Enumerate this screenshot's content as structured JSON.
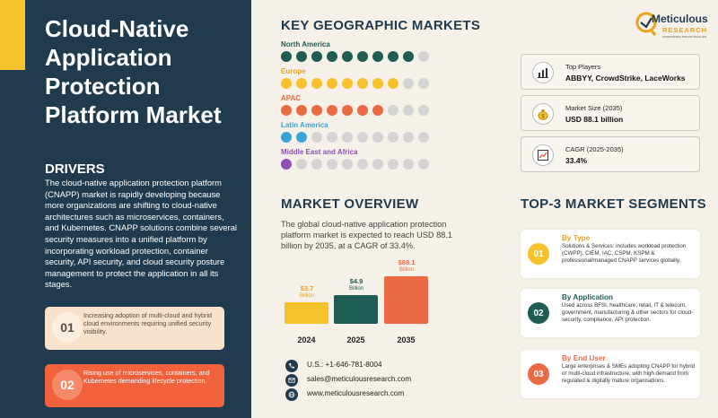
{
  "title": "Cloud-Native Application Protection Platform Market",
  "drivers": {
    "heading": "DRIVERS",
    "text": "The cloud-native application protection platform (CNAPP) market is rapidly developing because more organizations are shifting to cloud-native architectures such as microservices, containers, and Kubernetes. CNAPP solutions combine several security measures into a unified platform by incorporating workload protection, container security, API security, and cloud security posture management to protect the application in all its stages.",
    "cards": [
      {
        "num": "01",
        "text": "Increasing adoption of multi-cloud and hybrid cloud environments requiring unified security visibility."
      },
      {
        "num": "02",
        "text": "Rising use of microservices, containers, and Kubernetes demanding lifecycle protection."
      }
    ]
  },
  "geo": {
    "heading": "KEY GEOGRAPHIC MARKETS",
    "regions": [
      {
        "name": "North America",
        "filled": 9,
        "total": 10,
        "color": "#1f5c54"
      },
      {
        "name": "Europe",
        "filled": 8,
        "total": 10,
        "color": "#f5c22b"
      },
      {
        "name": "APAC",
        "filled": 7,
        "total": 10,
        "color": "#ea6a43"
      },
      {
        "name": "Latin America",
        "filled": 2,
        "total": 10,
        "color": "#3aa3d5"
      },
      {
        "name": "Middle East and Africa",
        "filled": 1,
        "total": 10,
        "color": "#8e4fb8"
      }
    ]
  },
  "logo": {
    "line1": "Meticulous",
    "line2": "RESEARCH",
    "tagline": "TRANSFORMING INSIGHTS SINCE 2010"
  },
  "stats": [
    {
      "label": "Top Players",
      "value": "ABBYY, CrowdStrike, LaceWorks",
      "icon": "bar-chart-icon"
    },
    {
      "label": "Market Size (2035)",
      "value": "USD 88.1 billion",
      "icon": "money-bag-icon"
    },
    {
      "label": "CAGR (2025-2035)",
      "value": "33.4%",
      "icon": "trend-up-icon"
    }
  ],
  "overview": {
    "heading": "MARKET OVERVIEW",
    "text": "The global cloud-native application protection platform market is expected to reach USD 88.1 billion by 2035, at a CAGR of 33.4%."
  },
  "chart_data": {
    "type": "bar",
    "categories": [
      "2024",
      "2025",
      "2035"
    ],
    "values": [
      3.7,
      4.9,
      88.1
    ],
    "labels": [
      "$3.7",
      "$4.9",
      "$88.1"
    ],
    "unit": "Billion",
    "colors": [
      "#f5c22b",
      "#1f5c54",
      "#ea6a43"
    ]
  },
  "contact": [
    {
      "text": "U.S.: +1-646-781-8004",
      "icon": "phone-icon"
    },
    {
      "text": "sales@meticulousresearch.com",
      "icon": "email-icon"
    },
    {
      "text": "www.meticulousresearch.com",
      "icon": "globe-icon"
    }
  ],
  "segments": {
    "heading": "TOP-3 MARKET SEGMENTS",
    "items": [
      {
        "num": "01",
        "title": "By Type",
        "color": "#f5c22b",
        "text": "Solutions & Services: includes workload protection (CWPP), CIEM, IAC, CSPM, KSPM & professional/managed CNAPP services globally."
      },
      {
        "num": "02",
        "title": "By Application",
        "color": "#1f5c54",
        "text": "Used across BFSI, healthcare, retail, IT & telecom, government, manufacturing & other sectors for cloud-security, compliance, API protection."
      },
      {
        "num": "03",
        "title": "By End User",
        "color": "#ea6a43",
        "text": "Large enterprises & SMEs adopting CNAPP for hybrid or multi-cloud infrastructure, with high demand from regulated & digitally mature organisations."
      }
    ]
  }
}
